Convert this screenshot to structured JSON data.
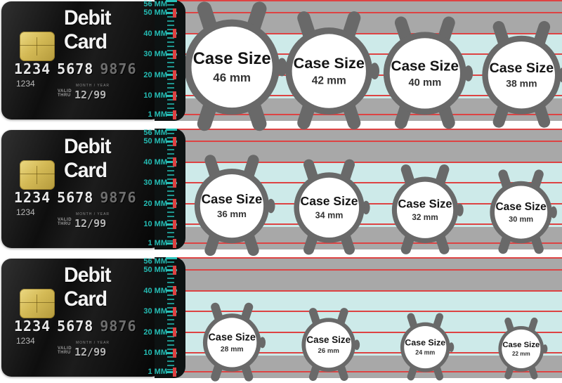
{
  "colors": {
    "red_line": "#dd4343",
    "teal_label": "#25bcb4",
    "cyan_band": "#cdeae9",
    "gray_band": "#a8a8a8",
    "watch_gray": "#696969",
    "chip_gold": "#d4ba56",
    "card_black": "#0e0e0e"
  },
  "card": {
    "title": "Debit Card",
    "number_groups": [
      "1234",
      "5678",
      "9876"
    ],
    "account_number": "1234",
    "valid_label_line1": "VALID",
    "valid_label_line2": "THRU",
    "month_year_label": "MONTH / YEAR",
    "expiry": "12/99"
  },
  "ruler": {
    "labels": [
      {
        "mm": 56,
        "label": "56 MM"
      },
      {
        "mm": 50,
        "label": "50 MM"
      },
      {
        "mm": 40,
        "label": "40 MM"
      },
      {
        "mm": 30,
        "label": "30 MM"
      },
      {
        "mm": 20,
        "label": "20 MM"
      },
      {
        "mm": 10,
        "label": "10 MM"
      },
      {
        "mm": 1,
        "label": "1 MM"
      }
    ],
    "red_line_mms": [
      50,
      40,
      30,
      20,
      10,
      1
    ],
    "top_line_mm": 56
  },
  "rows": [
    {
      "watches": [
        {
          "title": "Case Size",
          "size_label": "46 mm",
          "mm": 46
        },
        {
          "title": "Case Size",
          "size_label": "42 mm",
          "mm": 42
        },
        {
          "title": "Case Size",
          "size_label": "40 mm",
          "mm": 40
        },
        {
          "title": "Case Size",
          "size_label": "38 mm",
          "mm": 38
        }
      ]
    },
    {
      "watches": [
        {
          "title": "Case Size",
          "size_label": "36 mm",
          "mm": 36
        },
        {
          "title": "Case Size",
          "size_label": "34 mm",
          "mm": 34
        },
        {
          "title": "Case Size",
          "size_label": "32 mm",
          "mm": 32
        },
        {
          "title": "Case Size",
          "size_label": "30 mm",
          "mm": 30
        }
      ]
    },
    {
      "watches": [
        {
          "title": "Case Size",
          "size_label": "28 mm",
          "mm": 28
        },
        {
          "title": "Case Size",
          "size_label": "26 mm",
          "mm": 26
        },
        {
          "title": "Case Size",
          "size_label": "24 mm",
          "mm": 24
        },
        {
          "title": "Case Size",
          "size_label": "22 mm",
          "mm": 22
        }
      ]
    }
  ]
}
